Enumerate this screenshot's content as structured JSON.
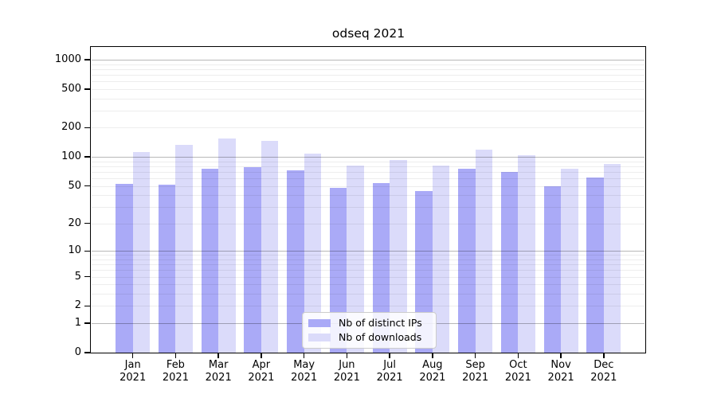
{
  "title": "odseq 2021",
  "legend": {
    "items": [
      {
        "label": "Nb of distinct IPs",
        "color": "#aaaaf7"
      },
      {
        "label": "Nb of downloads",
        "color": "#dbdbfa"
      }
    ]
  },
  "chart_data": {
    "type": "bar",
    "title": "odseq 2021",
    "categories": [
      "Jan 2021",
      "Feb 2021",
      "Mar 2021",
      "Apr 2021",
      "May 2021",
      "Jun 2021",
      "Jul 2021",
      "Aug 2021",
      "Sep 2021",
      "Oct 2021",
      "Nov 2021",
      "Dec 2021"
    ],
    "months": [
      "Jan",
      "Feb",
      "Mar",
      "Apr",
      "May",
      "Jun",
      "Jul",
      "Aug",
      "Sep",
      "Oct",
      "Nov",
      "Dec"
    ],
    "year": "2021",
    "series": [
      {
        "name": "Nb of distinct IPs",
        "color": "#aaaaf7",
        "values": [
          52,
          51,
          76,
          78,
          72,
          48,
          54,
          44,
          76,
          70,
          50,
          61
        ]
      },
      {
        "name": "Nb of downloads",
        "color": "#dbdbfa",
        "values": [
          113,
          133,
          155,
          146,
          109,
          82,
          93,
          82,
          119,
          104,
          76,
          85
        ]
      }
    ],
    "yscale": "log10(1+x)",
    "y_ticks": [
      0,
      1,
      2,
      5,
      10,
      20,
      50,
      100,
      200,
      500,
      1000
    ],
    "y_major_gridlines": [
      1,
      10,
      100,
      1000
    ],
    "ylim": [
      0,
      1350
    ],
    "xlabel": "",
    "ylabel": "",
    "grid": true,
    "legend_position": "lower-center"
  }
}
